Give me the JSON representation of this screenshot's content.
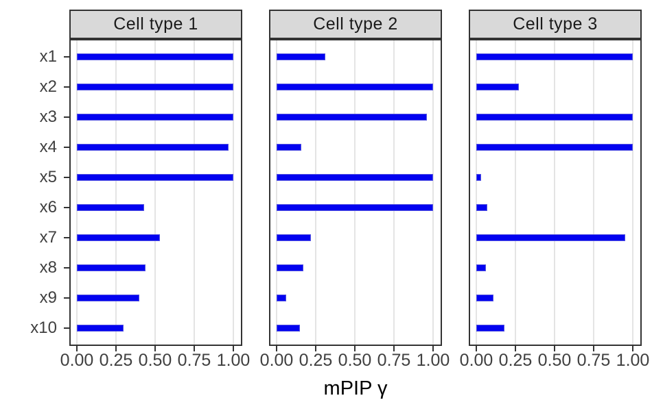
{
  "chart_data": {
    "type": "bar",
    "orientation": "horizontal",
    "title": "",
    "xlabel": "mPIP γ",
    "ylabel": "",
    "xlim": [
      0,
      1
    ],
    "x_tick_values": [
      0,
      0.25,
      0.5,
      0.75,
      1.0
    ],
    "x_tick_labels": [
      "0.00",
      "0.25",
      "0.50",
      "0.75",
      "1.00"
    ],
    "categories": [
      "x1",
      "x2",
      "x3",
      "x4",
      "x5",
      "x6",
      "x7",
      "x8",
      "x9",
      "x10"
    ],
    "facets": [
      {
        "label": "Cell type 1",
        "values": [
          1.0,
          1.0,
          1.0,
          0.97,
          1.0,
          0.43,
          0.53,
          0.44,
          0.4,
          0.3
        ]
      },
      {
        "label": "Cell type 2",
        "values": [
          0.31,
          1.0,
          0.96,
          0.16,
          1.0,
          1.0,
          0.22,
          0.17,
          0.06,
          0.15
        ]
      },
      {
        "label": "Cell type 3",
        "values": [
          1.0,
          0.27,
          1.0,
          1.0,
          0.03,
          0.07,
          0.95,
          0.06,
          0.11,
          0.18
        ]
      }
    ],
    "legend": "none",
    "grid": "vertical-major-only",
    "style": {
      "bar_color": "#0202f0",
      "strip_background": "#d9d9d9",
      "grid_color": "#e4e4e4",
      "panel_border_color": "#333333",
      "axis_text_color": "#404040"
    }
  }
}
